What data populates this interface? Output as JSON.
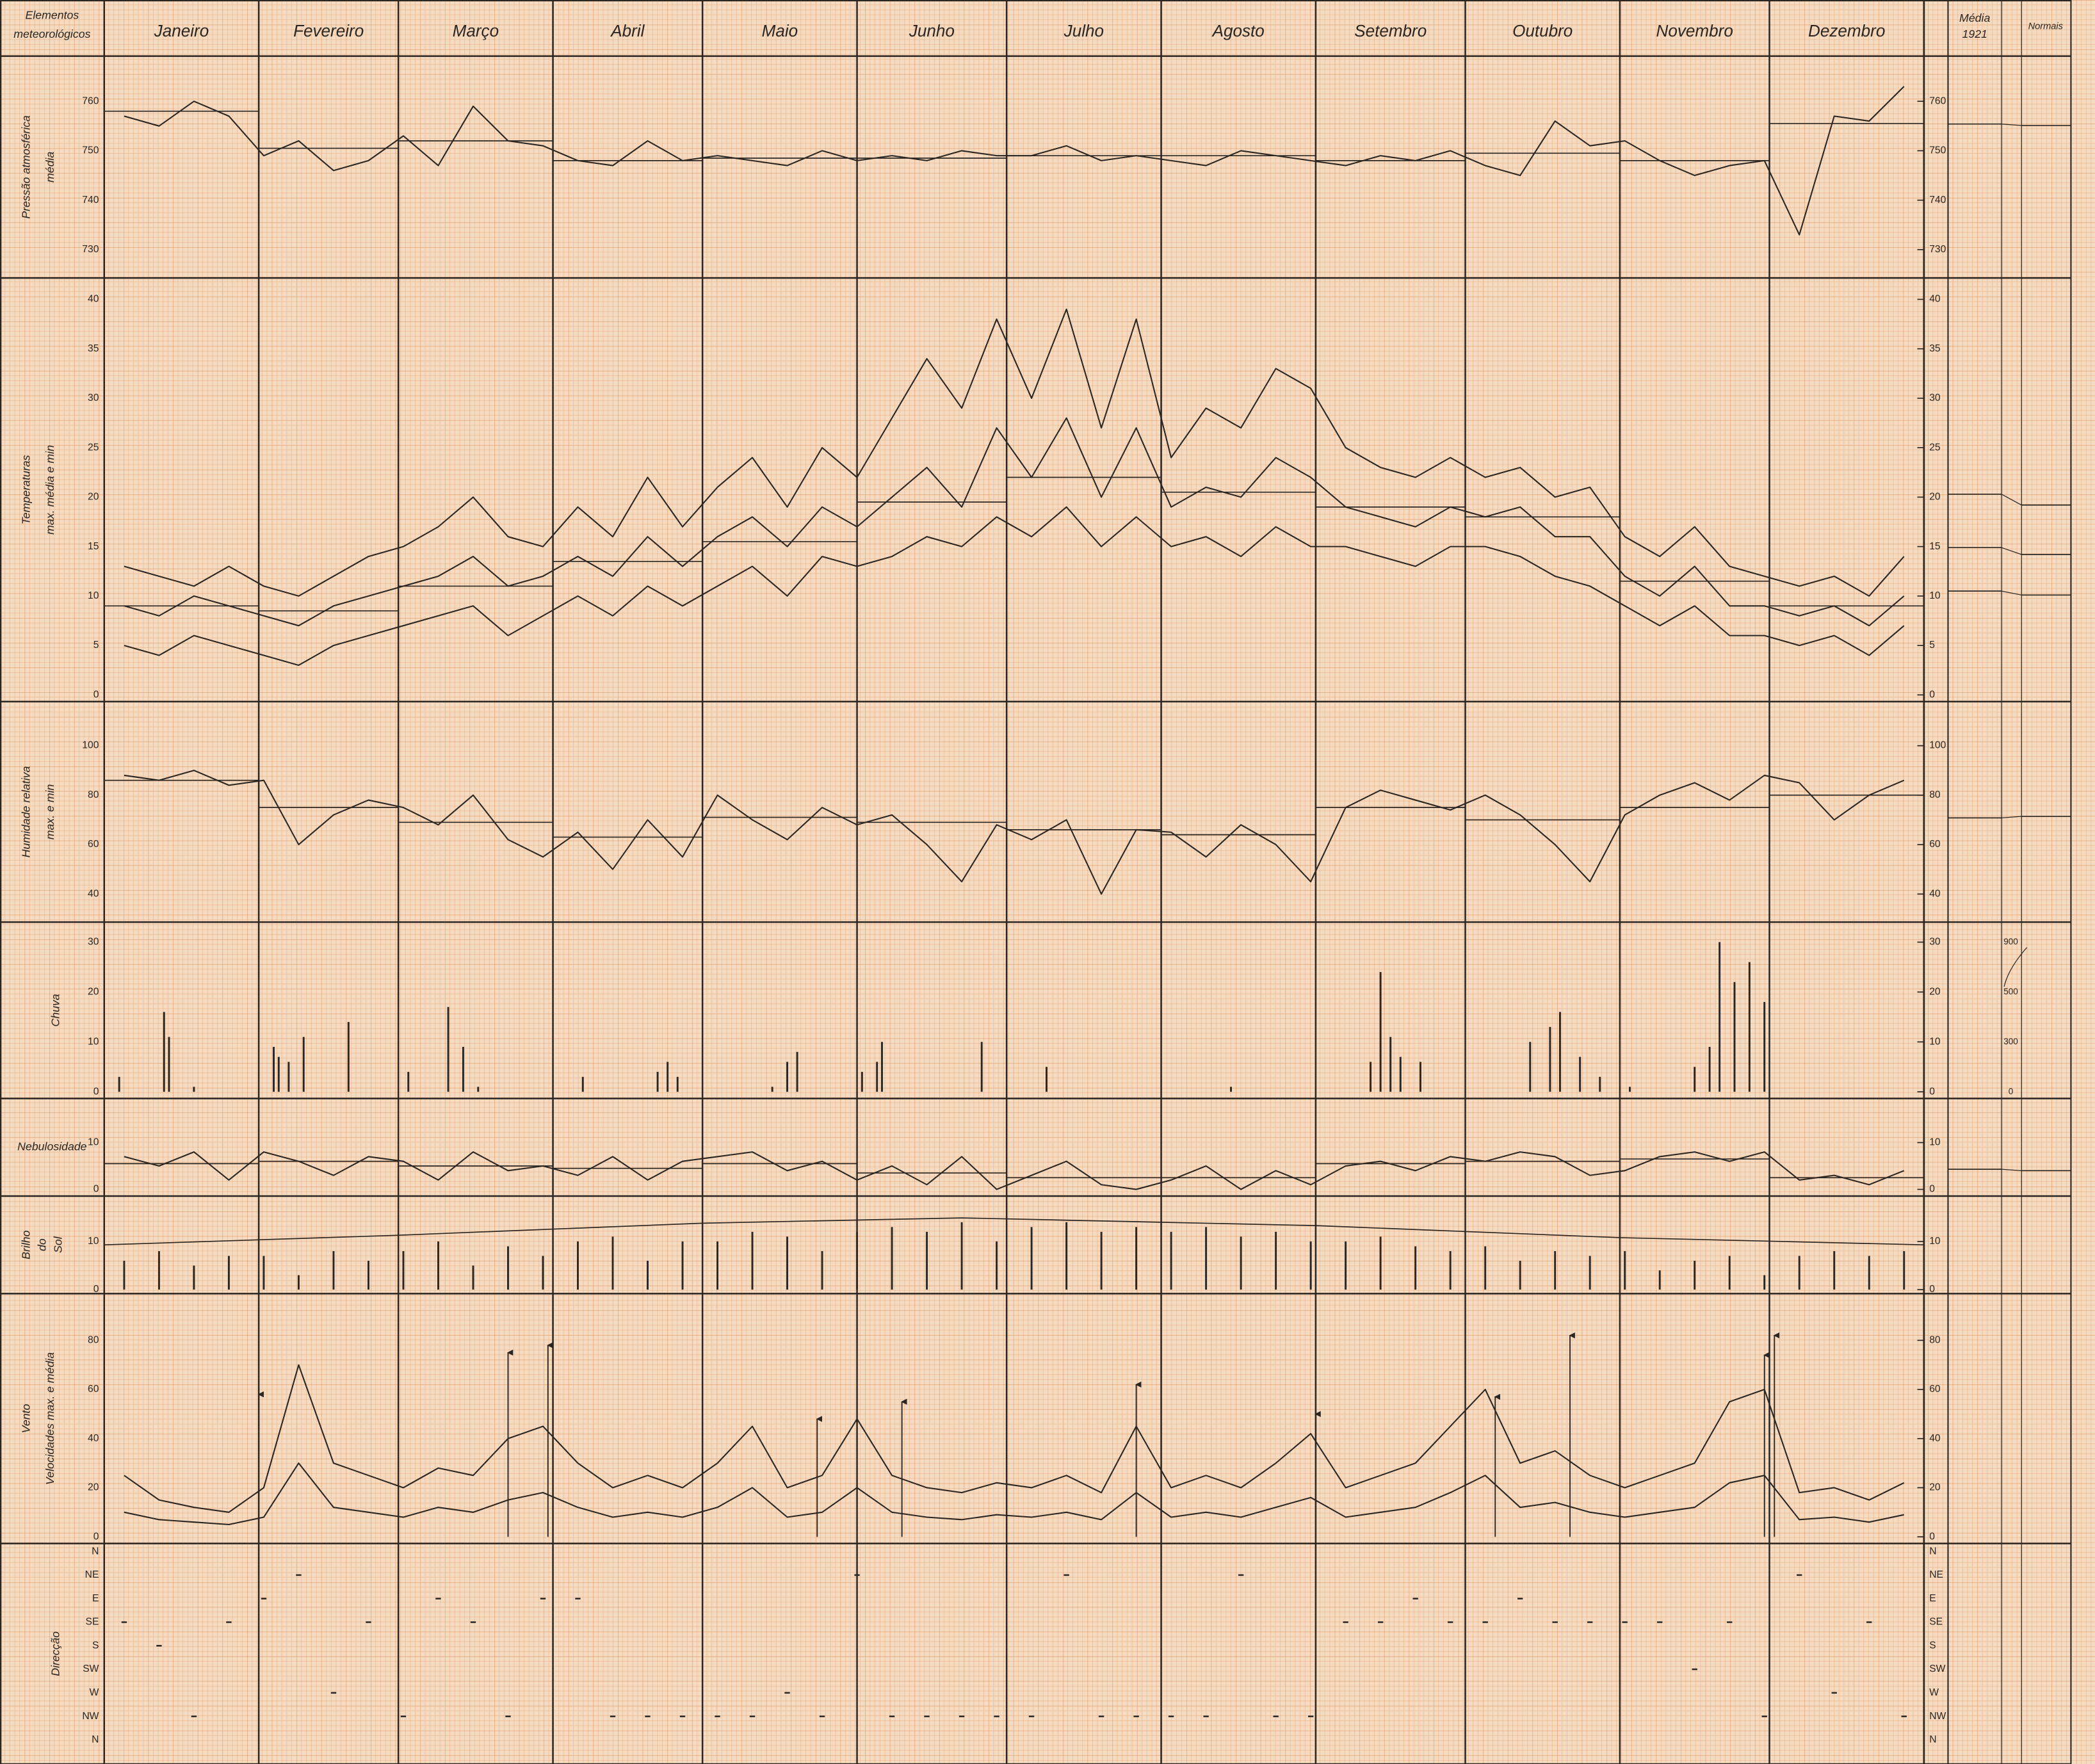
{
  "header": {
    "label": [
      "Elementos",
      "meteorológicos"
    ],
    "months": [
      "Janeiro",
      "Fevereiro",
      "Março",
      "Abril",
      "Maio",
      "Junho",
      "Julho",
      "Agosto",
      "Setembro",
      "Outubro",
      "Novembro",
      "Dezembro"
    ],
    "media": [
      "Média",
      "1921"
    ],
    "normais": "Normais",
    "xlim": [
      0,
      365
    ],
    "xticks": [
      0,
      31,
      59,
      90,
      120,
      151,
      181,
      212,
      243,
      273,
      304,
      334,
      365
    ]
  },
  "chart_data": [
    {
      "type": "line",
      "ylabel": [
        "Pressão atmosférica",
        "média"
      ],
      "ylim": [
        726,
        764
      ],
      "yticks": [
        730,
        740,
        750,
        760
      ],
      "x": [
        4,
        11,
        18,
        25,
        32,
        39,
        46,
        53,
        60,
        67,
        74,
        81,
        88,
        95,
        102,
        109,
        116,
        123,
        130,
        137,
        144,
        151,
        158,
        165,
        172,
        179,
        186,
        193,
        200,
        207,
        214,
        221,
        228,
        235,
        242,
        249,
        256,
        263,
        270,
        277,
        284,
        291,
        298,
        305,
        312,
        319,
        326,
        333,
        340,
        347,
        354,
        361
      ],
      "series": [
        {
          "color": "#2b2622",
          "values": [
            757,
            755,
            760,
            757,
            749,
            752,
            746,
            748,
            753,
            747,
            759,
            752,
            751,
            748,
            747,
            752,
            748,
            749,
            748,
            747,
            750,
            748,
            749,
            748,
            750,
            749,
            749,
            751,
            748,
            749,
            748,
            747,
            750,
            749,
            748,
            747,
            749,
            748,
            750,
            747,
            745,
            756,
            751,
            752,
            748,
            745,
            747,
            748,
            733,
            757,
            756,
            763
          ],
          "monthly_means": [
            758,
            750.5,
            752,
            748,
            748.5,
            748.5,
            749,
            749,
            748,
            749.5,
            748,
            755.5
          ],
          "annual_mean": 755.4,
          "normal": 755.1
        }
      ]
    },
    {
      "type": "line",
      "ylabel": [
        "Temperaturas",
        "max. média e min"
      ],
      "ylim": [
        0,
        40
      ],
      "yticks": [
        0,
        5,
        10,
        15,
        20,
        25,
        30,
        35,
        40
      ],
      "x": [
        4,
        11,
        18,
        25,
        32,
        39,
        46,
        53,
        60,
        67,
        74,
        81,
        88,
        95,
        102,
        109,
        116,
        123,
        130,
        137,
        144,
        151,
        158,
        165,
        172,
        179,
        186,
        193,
        200,
        207,
        214,
        221,
        228,
        235,
        242,
        249,
        256,
        263,
        270,
        277,
        284,
        291,
        298,
        305,
        312,
        319,
        326,
        333,
        340,
        347,
        354,
        361
      ],
      "series": [
        {
          "color": "#2b2622",
          "values": [
            13,
            12,
            11,
            13,
            11,
            10,
            12,
            14,
            15,
            17,
            20,
            16,
            15,
            19,
            16,
            22,
            17,
            21,
            24,
            19,
            25,
            22,
            28,
            34,
            29,
            38,
            30,
            39,
            27,
            38,
            24,
            29,
            27,
            33,
            31,
            25,
            23,
            22,
            24,
            22,
            23,
            20,
            21,
            16,
            14,
            17,
            13,
            12,
            11,
            12,
            10,
            14
          ],
          "annual_mean": 20.3,
          "normal": 19.2
        },
        {
          "color": "#2b2622",
          "values": [
            9,
            8,
            10,
            9,
            8,
            7,
            9,
            10,
            11,
            12,
            14,
            11,
            12,
            14,
            12,
            16,
            13,
            16,
            18,
            15,
            19,
            17,
            20,
            23,
            19,
            27,
            22,
            28,
            20,
            27,
            19,
            21,
            20,
            24,
            22,
            19,
            18,
            17,
            19,
            18,
            19,
            16,
            16,
            12,
            10,
            13,
            9,
            9,
            8,
            9,
            7,
            10
          ],
          "monthly_means": [
            9,
            8.5,
            11,
            13.5,
            15.5,
            19.5,
            22,
            20.5,
            19,
            18,
            11.5,
            9
          ],
          "annual_mean": 14.9,
          "normal": 14.2
        },
        {
          "color": "#2b2622",
          "values": [
            5,
            4,
            6,
            5,
            4,
            3,
            5,
            6,
            7,
            8,
            9,
            6,
            8,
            10,
            8,
            11,
            9,
            11,
            13,
            10,
            14,
            13,
            14,
            16,
            15,
            18,
            16,
            19,
            15,
            18,
            15,
            16,
            14,
            17,
            15,
            15,
            14,
            13,
            15,
            15,
            14,
            12,
            11,
            9,
            7,
            9,
            6,
            6,
            5,
            6,
            4,
            7
          ],
          "annual_mean": 10.5,
          "normal": 10.1
        }
      ]
    },
    {
      "type": "line",
      "ylabel": [
        "Humidade relativa",
        "max. e min"
      ],
      "ylim": [
        35,
        105
      ],
      "yticks": [
        40,
        60,
        80,
        100
      ],
      "x": [
        4,
        11,
        18,
        25,
        32,
        39,
        46,
        53,
        60,
        67,
        74,
        81,
        88,
        95,
        102,
        109,
        116,
        123,
        130,
        137,
        144,
        151,
        158,
        165,
        172,
        179,
        186,
        193,
        200,
        207,
        214,
        221,
        228,
        235,
        242,
        249,
        256,
        263,
        270,
        277,
        284,
        291,
        298,
        305,
        312,
        319,
        326,
        333,
        340,
        347,
        354,
        361
      ],
      "series": [
        {
          "color": "#2b2622",
          "values": [
            88,
            86,
            90,
            84,
            86,
            60,
            72,
            78,
            75,
            68,
            80,
            62,
            55,
            65,
            50,
            70,
            55,
            80,
            70,
            62,
            75,
            68,
            72,
            60,
            45,
            68,
            62,
            70,
            40,
            66,
            65,
            55,
            68,
            60,
            45,
            75,
            82,
            78,
            74,
            80,
            72,
            60,
            45,
            72,
            80,
            85,
            78,
            88,
            85,
            70,
            80,
            86
          ],
          "monthly_means": [
            86,
            75,
            69,
            63,
            71,
            69,
            66,
            64,
            75,
            70,
            75,
            80
          ],
          "annual_mean": 70.8,
          "normal": 71.4
        }
      ]
    },
    {
      "type": "bar",
      "ylabel": [
        "Chuva"
      ],
      "ylim": [
        0,
        30
      ],
      "yticks": [
        0,
        10,
        20,
        30
      ],
      "color": "#2b2622",
      "x": [
        3,
        12,
        13,
        18,
        34,
        35,
        37,
        40,
        49,
        61,
        69,
        72,
        75,
        96,
        111,
        113,
        115,
        134,
        137,
        139,
        152,
        155,
        156,
        176,
        189,
        226,
        254,
        256,
        258,
        260,
        264,
        286,
        290,
        292,
        296,
        300,
        306,
        319,
        322,
        324,
        327,
        330,
        333
      ],
      "values": [
        3,
        16,
        11,
        1,
        9,
        7,
        6,
        11,
        14,
        4,
        17,
        9,
        1,
        3,
        4,
        6,
        3,
        1,
        6,
        8,
        4,
        6,
        10,
        10,
        5,
        1,
        6,
        24,
        11,
        7,
        6,
        10,
        13,
        16,
        7,
        3,
        1,
        5,
        9,
        30,
        22,
        26,
        18
      ],
      "mean_scale": [
        "900",
        "500",
        "300",
        "0"
      ]
    },
    {
      "type": "line",
      "ylabel": [
        "Nebulosidade"
      ],
      "ylim": [
        0,
        10
      ],
      "yticks": [
        0,
        10
      ],
      "x": [
        4,
        11,
        18,
        25,
        32,
        39,
        46,
        53,
        60,
        67,
        74,
        81,
        88,
        95,
        102,
        109,
        116,
        123,
        130,
        137,
        144,
        151,
        158,
        165,
        172,
        179,
        186,
        193,
        200,
        207,
        214,
        221,
        228,
        235,
        242,
        249,
        256,
        263,
        270,
        277,
        284,
        291,
        298,
        305,
        312,
        319,
        326,
        333,
        340,
        347,
        354,
        361
      ],
      "series": [
        {
          "color": "#2b2622",
          "values": [
            7,
            5,
            8,
            2,
            8,
            6,
            3,
            7,
            6,
            2,
            8,
            4,
            5,
            3,
            7,
            2,
            6,
            7,
            8,
            4,
            6,
            2,
            5,
            1,
            7,
            0,
            3,
            6,
            1,
            0,
            2,
            5,
            0,
            4,
            1,
            5,
            6,
            4,
            7,
            6,
            8,
            7,
            3,
            4,
            7,
            8,
            6,
            8,
            2,
            3,
            1,
            4
          ],
          "monthly_means": [
            5.5,
            6,
            5,
            4.5,
            5.5,
            3.5,
            2.5,
            2.5,
            5.5,
            6,
            6.5,
            2.5
          ],
          "annual_mean": 4.3,
          "normal": 4.0
        }
      ]
    },
    {
      "type": "bar",
      "ylabel": [
        "Brilho",
        "do",
        "Sol"
      ],
      "ylim": [
        0,
        15
      ],
      "yticks": [
        0,
        10
      ],
      "color": "#2b2622",
      "x": [
        4,
        11,
        18,
        25,
        32,
        39,
        46,
        53,
        60,
        67,
        74,
        81,
        88,
        95,
        102,
        109,
        116,
        123,
        130,
        137,
        144,
        151,
        158,
        165,
        172,
        179,
        186,
        193,
        200,
        207,
        214,
        221,
        228,
        235,
        242,
        249,
        256,
        263,
        270,
        277,
        284,
        291,
        298,
        305,
        312,
        319,
        326,
        333,
        340,
        347,
        354,
        361
      ],
      "values": [
        6,
        8,
        5,
        7,
        7,
        3,
        8,
        6,
        8,
        10,
        5,
        9,
        7,
        10,
        11,
        6,
        10,
        10,
        12,
        11,
        8,
        12,
        13,
        12,
        14,
        10,
        13,
        14,
        12,
        13,
        12,
        13,
        11,
        12,
        10,
        10,
        11,
        9,
        8,
        9,
        6,
        8,
        7,
        8,
        4,
        6,
        7,
        3,
        7,
        8,
        7,
        8
      ],
      "envelope": {
        "x": [
          0,
          59,
          120,
          172,
          243,
          304,
          365
        ],
        "values": [
          9.3,
          11.3,
          13.8,
          14.9,
          13.3,
          10.8,
          9.3
        ]
      }
    },
    {
      "type": "line",
      "ylabel": [
        "Vento",
        "Velocidades max. e média"
      ],
      "ylim": [
        0,
        90
      ],
      "yticks": [
        0,
        20,
        40,
        60,
        80
      ],
      "x": [
        4,
        11,
        18,
        25,
        32,
        39,
        46,
        53,
        60,
        67,
        74,
        81,
        88,
        95,
        102,
        109,
        116,
        123,
        130,
        137,
        144,
        151,
        158,
        165,
        172,
        179,
        186,
        193,
        200,
        207,
        214,
        221,
        228,
        235,
        242,
        249,
        256,
        263,
        270,
        277,
        284,
        291,
        298,
        305,
        312,
        319,
        326,
        333,
        340,
        347,
        354,
        361
      ],
      "series": [
        {
          "color": "#2b2622",
          "values": [
            25,
            15,
            12,
            10,
            20,
            70,
            30,
            25,
            20,
            28,
            25,
            40,
            45,
            30,
            20,
            25,
            20,
            30,
            45,
            20,
            25,
            48,
            25,
            20,
            18,
            22,
            20,
            25,
            18,
            45,
            20,
            25,
            20,
            30,
            42,
            20,
            25,
            30,
            45,
            60,
            30,
            35,
            25,
            20,
            25,
            30,
            55,
            60,
            18,
            20,
            15,
            22
          ]
        },
        {
          "color": "#2b2622",
          "values": [
            10,
            7,
            6,
            5,
            8,
            30,
            12,
            10,
            8,
            12,
            10,
            15,
            18,
            12,
            8,
            10,
            8,
            12,
            20,
            8,
            10,
            20,
            10,
            8,
            7,
            9,
            8,
            10,
            7,
            18,
            8,
            10,
            8,
            12,
            16,
            8,
            10,
            12,
            18,
            25,
            12,
            14,
            10,
            8,
            10,
            12,
            22,
            25,
            7,
            8,
            6,
            9
          ]
        }
      ],
      "gusts": {
        "x": [
          31,
          81,
          89,
          143,
          160,
          207,
          243,
          279,
          294,
          333,
          335
        ],
        "values": [
          58,
          75,
          78,
          48,
          55,
          62,
          50,
          57,
          82,
          74,
          82
        ]
      }
    },
    {
      "type": "scatter",
      "ylabel": [
        "Direcção"
      ],
      "categories": [
        "N",
        "NE",
        "E",
        "SE",
        "S",
        "SW",
        "W",
        "NW",
        "N"
      ],
      "x": [
        4,
        11,
        18,
        25,
        32,
        39,
        46,
        53,
        60,
        67,
        74,
        81,
        88,
        95,
        102,
        109,
        116,
        123,
        130,
        137,
        144,
        151,
        158,
        165,
        172,
        179,
        186,
        193,
        200,
        207,
        214,
        221,
        228,
        235,
        242,
        249,
        256,
        263,
        270,
        277,
        284,
        291,
        298,
        305,
        312,
        319,
        326,
        333,
        340,
        347,
        354,
        361
      ],
      "values": [
        "SE",
        "S",
        "NW",
        "SE",
        "E",
        "NE",
        "W",
        "SE",
        "NW",
        "E",
        "SE",
        "NW",
        "E",
        "E",
        "NW",
        "NW",
        "NW",
        "NW",
        "NW",
        "W",
        "NW",
        "NE",
        "NW",
        "NW",
        "NW",
        "NW",
        "NW",
        "NE",
        "NW",
        "NW",
        "NW",
        "NW",
        "NE",
        "NW",
        "NW",
        "SE",
        "SE",
        "E",
        "SE",
        "SE",
        "E",
        "SE",
        "SE",
        "SE",
        "SE",
        "SW",
        "SE",
        "NW",
        "NE",
        "W",
        "SE",
        "NW"
      ]
    }
  ]
}
